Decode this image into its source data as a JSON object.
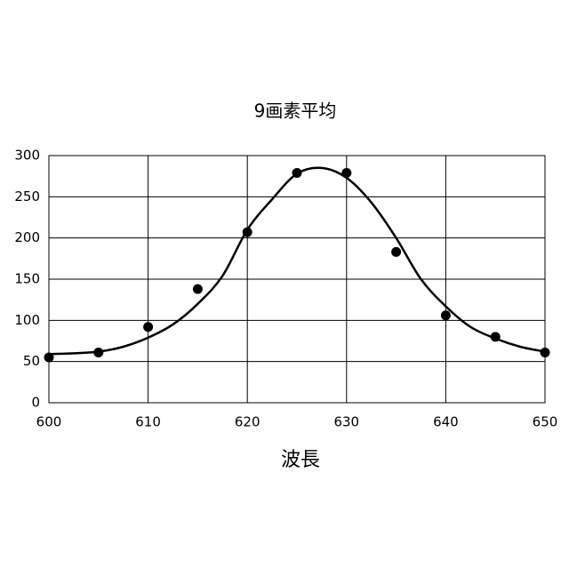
{
  "chart_data": {
    "type": "scatter",
    "title": "9画素平均",
    "x_label": "波長",
    "xlim": [
      600,
      650
    ],
    "xticks": [
      600,
      610,
      620,
      630,
      640,
      650
    ],
    "ylim": [
      0,
      300
    ],
    "yticks": [
      0,
      50,
      100,
      150,
      200,
      250,
      300
    ],
    "grid": true,
    "series": [
      {
        "mode": "markers",
        "color": "#000000",
        "x": [
          600,
          605,
          610,
          615,
          620,
          625,
          630,
          635,
          640,
          645,
          650
        ],
        "values": [
          55,
          61,
          92,
          138,
          207,
          279,
          279,
          183,
          106,
          80,
          61
        ]
      },
      {
        "mode": "line",
        "color": "#000000",
        "x": [
          600,
          602.5,
          605,
          607.5,
          610,
          612.5,
          615,
          617.5,
          620,
          622.5,
          625,
          627.5,
          630,
          632.5,
          635,
          637.5,
          640,
          642.5,
          645,
          647.5,
          650
        ],
        "values": [
          59,
          60,
          62,
          68,
          79,
          95,
          120,
          154,
          210,
          247,
          278,
          285,
          273,
          243,
          200,
          150,
          117,
          92,
          78,
          68,
          62
        ]
      }
    ]
  }
}
